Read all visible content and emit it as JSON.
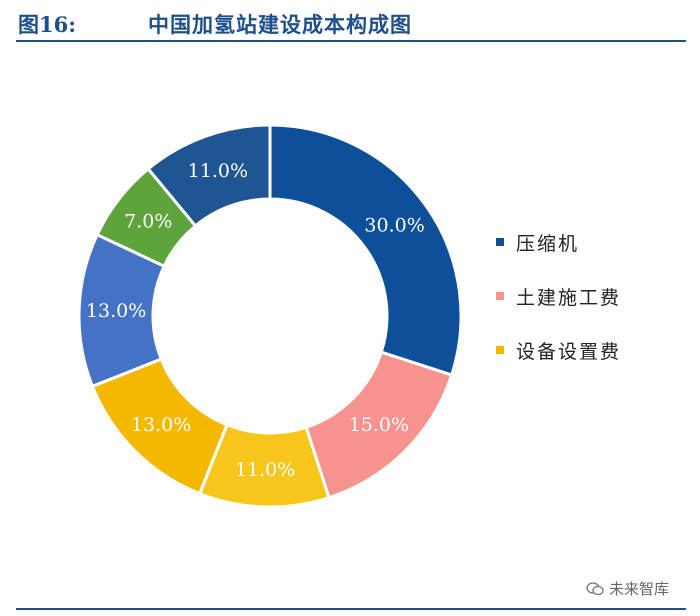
{
  "header": {
    "figure_label": "图16:",
    "title": "中国加氢站建设成本构成图"
  },
  "chart_data": {
    "type": "pie",
    "style": "donut",
    "title": "中国加氢站建设成本构成图",
    "start_angle_deg": 0,
    "direction": "clockwise",
    "slices": [
      {
        "label": "30.0%",
        "value": 30.0,
        "color": "#0d4f98"
      },
      {
        "label": "15.0%",
        "value": 15.0,
        "color": "#f7928e"
      },
      {
        "label": "11.0%",
        "value": 11.0,
        "color": "#f7c61a"
      },
      {
        "label": "13.0%",
        "value": 13.0,
        "color": "#f5b800"
      },
      {
        "label": "13.0%",
        "value": 13.0,
        "color": "#4472c4"
      },
      {
        "label": "7.0%",
        "value": 7.0,
        "color": "#5ea33c"
      },
      {
        "label": "11.0%",
        "value": 11.0,
        "color": "#1f5592"
      }
    ],
    "legend": [
      {
        "label": "压缩机",
        "color": "#0d4f98"
      },
      {
        "label": "土建施工费",
        "color": "#f7928e"
      },
      {
        "label": "设备设置费",
        "color": "#f5b800"
      }
    ],
    "legend_position": "right"
  },
  "watermark": {
    "text": "未来智库"
  }
}
